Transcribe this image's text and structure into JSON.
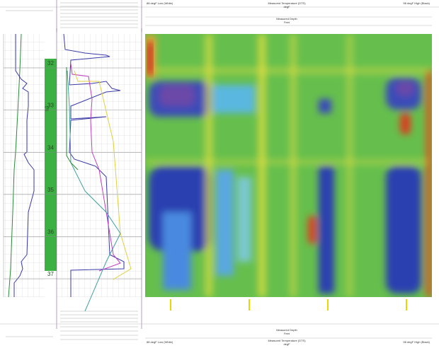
{
  "header": {
    "title": "Measured Temperature (DTS)",
    "title_unit": "degF",
    "depth_title": "Measured Depth",
    "depth_unit": "Feet",
    "low_label": "88 degF Low (White)",
    "high_label": "98 degF High (Black)"
  },
  "depth_track": {
    "unit": "(ft)",
    "labels": [
      "32",
      "33",
      "34",
      "35",
      "36",
      "37"
    ]
  },
  "footer": {
    "depth_title": "Measured Depth",
    "depth_unit": "Feet",
    "title": "Measured Temperature (DTS)",
    "title_unit": "degF",
    "low_label": "88 degF Low (White)",
    "high_label": "98 degF High (Black)"
  }
}
